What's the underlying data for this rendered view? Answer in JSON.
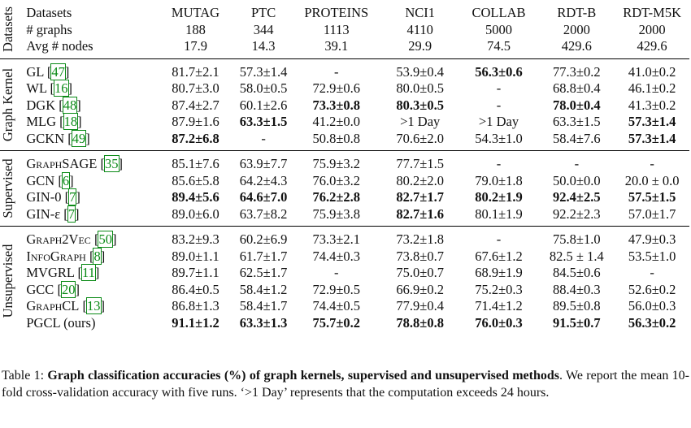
{
  "header": {
    "group": "Datasets",
    "rows": [
      [
        "Datasets",
        "MUTAG",
        "PTC",
        "PROTEINS",
        "NCI1",
        "COLLAB",
        "RDT-B",
        "RDT-M5K"
      ],
      [
        "# graphs",
        "188",
        "344",
        "1113",
        "4110",
        "5000",
        "2000",
        "2000"
      ],
      [
        "Avg # nodes",
        "17.9",
        "14.3",
        "39.1",
        "29.9",
        "74.5",
        "429.6",
        "429.6"
      ]
    ]
  },
  "groups": [
    {
      "label": "Graph Kernel",
      "rows": [
        {
          "method": "GL",
          "ref": "47",
          "cells": [
            "81.7±2.1",
            "57.3±1.4",
            "-",
            "53.9±0.4",
            "56.3±0.6",
            "77.3±0.2",
            "41.0±0.2"
          ],
          "bold": [
            4
          ]
        },
        {
          "method": "WL",
          "ref": "16",
          "cells": [
            "80.7±3.0",
            "58.0±0.5",
            "72.9±0.6",
            "80.0±0.5",
            "-",
            "68.8±0.4",
            "46.1±0.2"
          ],
          "bold": []
        },
        {
          "method": "DGK",
          "ref": "48",
          "cells": [
            "87.4±2.7",
            "60.1±2.6",
            "73.3±0.8",
            "80.3±0.5",
            "-",
            "78.0±0.4",
            "41.3±0.2"
          ],
          "bold": [
            2,
            3,
            5
          ]
        },
        {
          "method": "MLG",
          "ref": "18",
          "cells": [
            "87.9±1.6",
            "63.3±1.5",
            "41.2±0.0",
            ">1 Day",
            ">1 Day",
            "63.3±1.5",
            "57.3±1.4"
          ],
          "bold": [
            1,
            6
          ]
        },
        {
          "method": "GCKN",
          "ref": "49",
          "cells": [
            "87.2±6.8",
            "-",
            "50.8±0.8",
            "70.6±2.0",
            "54.3±1.0",
            "58.4±7.6",
            "57.3±1.4"
          ],
          "bold": [
            0,
            6
          ]
        }
      ]
    },
    {
      "label": "Supervised",
      "rows": [
        {
          "method": "GraphSAGE",
          "sc": true,
          "ref": "35",
          "cells": [
            "85.1±7.6",
            "63.9±7.7",
            "75.9±3.2",
            "77.7±1.5",
            "-",
            "-",
            "-"
          ],
          "bold": []
        },
        {
          "method": "GCN",
          "ref": "6",
          "cells": [
            "85.6±5.8",
            "64.2±4.3",
            "76.0±3.2",
            "80.2±2.0",
            "79.0±1.8",
            "50.0±0.0",
            "20.0 ± 0.0"
          ],
          "bold": []
        },
        {
          "method": "GIN-0",
          "ref": "7",
          "cells": [
            "89.4±5.6",
            "64.6±7.0",
            "76.2±2.8",
            "82.7±1.7",
            "80.2±1.9",
            "92.4±2.5",
            "57.5±1.5"
          ],
          "bold": [
            0,
            1,
            2,
            3,
            4,
            5,
            6
          ]
        },
        {
          "method": "GIN-ε",
          "ref": "7",
          "cells": [
            "89.0±6.0",
            "63.7±8.2",
            "75.9±3.8",
            "82.7±1.6",
            "80.1±1.9",
            "92.2±2.3",
            "57.0±1.7"
          ],
          "bold": [
            3
          ]
        }
      ]
    },
    {
      "label": "Unsupervised",
      "rows": [
        {
          "method": "Graph2Vec",
          "sc": true,
          "ref": "50",
          "cells": [
            "83.2±9.3",
            "60.2±6.9",
            "73.3±2.1",
            "73.2±1.8",
            "-",
            "75.8±1.0",
            "47.9±0.3"
          ],
          "bold": []
        },
        {
          "method": "InfoGraph",
          "sc": true,
          "ref": "8",
          "cells": [
            "89.0±1.1",
            "61.7±1.7",
            "74.4±0.3",
            "73.8±0.7",
            "67.6±1.2",
            "82.5 ± 1.4",
            "53.5±1.0"
          ],
          "bold": []
        },
        {
          "method": "MVGRL",
          "ref": "11",
          "cells": [
            "89.7±1.1",
            "62.5±1.7",
            "-",
            "75.0±0.7",
            "68.9±1.9",
            "84.5±0.6",
            "-"
          ],
          "bold": []
        },
        {
          "method": "GCC",
          "ref": "20",
          "cells": [
            "86.4±0.5",
            "58.4±1.2",
            "72.9±0.5",
            "66.9±0.2",
            "75.2±0.3",
            "88.4±0.3",
            "52.6±0.2"
          ],
          "bold": []
        },
        {
          "method": "GraphCL",
          "sc": true,
          "ref": "13",
          "cells": [
            "86.8±1.3",
            "58.4±1.7",
            "74.4±0.5",
            "77.9±0.4",
            "71.4±1.2",
            "89.5±0.8",
            "56.0±0.3"
          ],
          "bold": []
        },
        {
          "method": "PGCL (ours)",
          "ref": "",
          "cells": [
            "91.1±1.2",
            "63.3±1.3",
            "75.7±0.2",
            "78.8±0.8",
            "76.0±0.3",
            "91.5±0.7",
            "56.3±0.2"
          ],
          "bold": [
            0,
            1,
            2,
            3,
            4,
            5,
            6
          ]
        }
      ]
    }
  ],
  "caption": {
    "prefix": "Table 1: ",
    "bold": "Graph classification accuracies (%) of graph kernels, supervised and unsupervised methods",
    "rest": ". We report the mean 10-fold cross-validation accuracy with five runs. ‘>1 Day’ represents that the computation exceeds 24 hours."
  }
}
